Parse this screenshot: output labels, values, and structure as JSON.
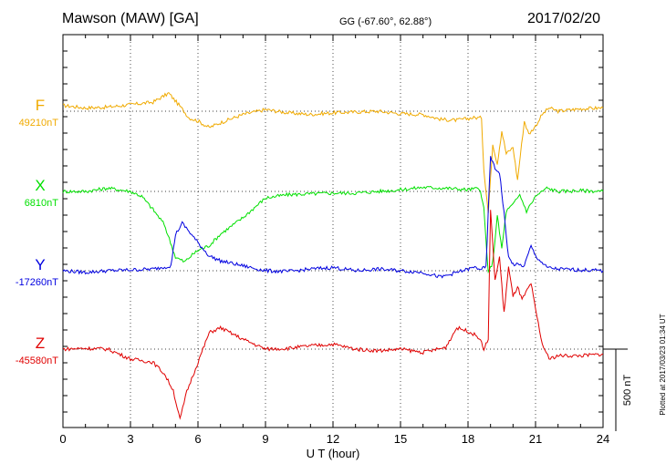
{
  "header": {
    "station": "Mawson (MAW)  [GA]",
    "coords": "GG (-67.60°,  62.88°)",
    "date": "2017/02/20"
  },
  "plotted_note": "Plotted at 2017/03/23 01:34 UT",
  "scale_label": "500 nT",
  "colors": {
    "F": "#f0aa00",
    "X": "#00e000",
    "Y": "#0000e0",
    "Z": "#e00000"
  },
  "chart_data": {
    "type": "line",
    "title": "Mawson (MAW)  [GA]",
    "xlabel": "U T (hour)",
    "xlim": [
      0,
      24
    ],
    "xticks": [
      "0",
      "3",
      "6",
      "9",
      "12",
      "15",
      "18",
      "21",
      "24"
    ],
    "scale_bar_nT": 500,
    "grid": true,
    "series": [
      {
        "name": "F",
        "baseline_label": "49210nT",
        "baseline_nT": 49210,
        "points": [
          [
            0,
            35
          ],
          [
            1,
            20
          ],
          [
            2,
            25
          ],
          [
            3,
            40
          ],
          [
            4,
            55
          ],
          [
            4.7,
            110
          ],
          [
            5.2,
            30
          ],
          [
            5.6,
            -40
          ],
          [
            6,
            -60
          ],
          [
            6.5,
            -100
          ],
          [
            7,
            -70
          ],
          [
            8,
            -20
          ],
          [
            9,
            10
          ],
          [
            10,
            -10
          ],
          [
            11,
            -20
          ],
          [
            12,
            -10
          ],
          [
            13,
            -5
          ],
          [
            14,
            0
          ],
          [
            15,
            -15
          ],
          [
            16,
            -20
          ],
          [
            16.8,
            -50
          ],
          [
            17.5,
            -55
          ],
          [
            18.2,
            -40
          ],
          [
            18.6,
            -40
          ],
          [
            18.7,
            -350
          ],
          [
            18.9,
            -620
          ],
          [
            19.1,
            -200
          ],
          [
            19.3,
            -320
          ],
          [
            19.5,
            -120
          ],
          [
            19.7,
            -260
          ],
          [
            20,
            -220
          ],
          [
            20.2,
            -420
          ],
          [
            20.5,
            -60
          ],
          [
            20.7,
            -140
          ],
          [
            21,
            -90
          ],
          [
            21.3,
            -20
          ],
          [
            21.6,
            20
          ],
          [
            22,
            0
          ],
          [
            23,
            15
          ],
          [
            24,
            20
          ]
        ]
      },
      {
        "name": "X",
        "baseline_label": "6810nT",
        "baseline_nT": 6810,
        "points": [
          [
            0,
            0
          ],
          [
            1,
            0
          ],
          [
            2,
            20
          ],
          [
            3,
            0
          ],
          [
            3.5,
            -30
          ],
          [
            4,
            -110
          ],
          [
            4.5,
            -200
          ],
          [
            5,
            -400
          ],
          [
            5.4,
            -430
          ],
          [
            5.8,
            -380
          ],
          [
            6,
            -360
          ],
          [
            6.5,
            -330
          ],
          [
            7,
            -260
          ],
          [
            8,
            -160
          ],
          [
            9,
            -40
          ],
          [
            10,
            -20
          ],
          [
            11,
            -15
          ],
          [
            12,
            -10
          ],
          [
            13,
            -10
          ],
          [
            14,
            0
          ],
          [
            15,
            10
          ],
          [
            16,
            25
          ],
          [
            17,
            20
          ],
          [
            18,
            10
          ],
          [
            18.5,
            20
          ],
          [
            18.7,
            -100
          ],
          [
            18.9,
            -500
          ],
          [
            19.1,
            -430
          ],
          [
            19.3,
            -150
          ],
          [
            19.5,
            -350
          ],
          [
            19.7,
            -120
          ],
          [
            20,
            -80
          ],
          [
            20.3,
            -20
          ],
          [
            20.6,
            -120
          ],
          [
            21,
            -30
          ],
          [
            21.5,
            20
          ],
          [
            22,
            0
          ],
          [
            23,
            5
          ],
          [
            24,
            0
          ]
        ]
      },
      {
        "name": "Y",
        "baseline_label": "-17260nT",
        "baseline_nT": -17260,
        "points": [
          [
            0,
            0
          ],
          [
            1,
            -10
          ],
          [
            2,
            0
          ],
          [
            3,
            5
          ],
          [
            4,
            10
          ],
          [
            4.8,
            30
          ],
          [
            5,
            220
          ],
          [
            5.3,
            290
          ],
          [
            5.6,
            240
          ],
          [
            6,
            170
          ],
          [
            6.5,
            90
          ],
          [
            7,
            60
          ],
          [
            8,
            30
          ],
          [
            9,
            0
          ],
          [
            10,
            -5
          ],
          [
            11,
            10
          ],
          [
            12,
            20
          ],
          [
            13,
            0
          ],
          [
            14,
            10
          ],
          [
            15,
            0
          ],
          [
            16,
            -10
          ],
          [
            16.8,
            -40
          ],
          [
            17.5,
            -10
          ],
          [
            18.3,
            20
          ],
          [
            18.6,
            10
          ],
          [
            18.8,
            20
          ],
          [
            19,
            700
          ],
          [
            19.2,
            620
          ],
          [
            19.4,
            600
          ],
          [
            19.6,
            350
          ],
          [
            19.8,
            80
          ],
          [
            20,
            40
          ],
          [
            20.5,
            30
          ],
          [
            20.8,
            150
          ],
          [
            21,
            90
          ],
          [
            21.5,
            20
          ],
          [
            22,
            10
          ],
          [
            23,
            5
          ],
          [
            24,
            0
          ]
        ]
      },
      {
        "name": "Z",
        "baseline_label": "-45580nT",
        "baseline_nT": -45580,
        "points": [
          [
            0,
            0
          ],
          [
            1,
            5
          ],
          [
            2,
            0
          ],
          [
            3,
            -60
          ],
          [
            4,
            -80
          ],
          [
            4.5,
            -150
          ],
          [
            4.9,
            -250
          ],
          [
            5.2,
            -430
          ],
          [
            5.5,
            -260
          ],
          [
            6,
            -80
          ],
          [
            6.5,
            100
          ],
          [
            7,
            130
          ],
          [
            8,
            60
          ],
          [
            9,
            0
          ],
          [
            10,
            5
          ],
          [
            11,
            20
          ],
          [
            12,
            30
          ],
          [
            13,
            0
          ],
          [
            14,
            -10
          ],
          [
            15,
            0
          ],
          [
            16,
            -20
          ],
          [
            17,
            10
          ],
          [
            17.5,
            130
          ],
          [
            18,
            110
          ],
          [
            18.5,
            70
          ],
          [
            18.7,
            0
          ],
          [
            18.9,
            60
          ],
          [
            19,
            850
          ],
          [
            19.2,
            420
          ],
          [
            19.4,
            560
          ],
          [
            19.6,
            220
          ],
          [
            19.8,
            500
          ],
          [
            20,
            320
          ],
          [
            20.2,
            380
          ],
          [
            20.4,
            300
          ],
          [
            20.8,
            400
          ],
          [
            21,
            240
          ],
          [
            21.3,
            30
          ],
          [
            21.6,
            -60
          ],
          [
            22,
            -40
          ],
          [
            23,
            -40
          ],
          [
            24,
            -30
          ]
        ]
      }
    ]
  }
}
